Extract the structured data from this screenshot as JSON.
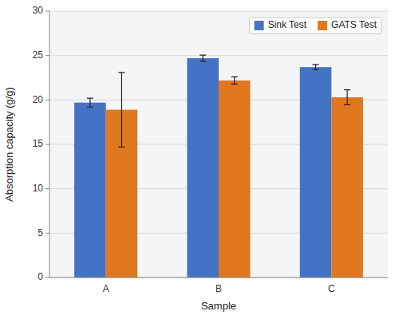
{
  "chart_data": {
    "type": "bar",
    "categories": [
      "A",
      "B",
      "C"
    ],
    "series": [
      {
        "name": "Sink Test",
        "color": "#4472C4",
        "values": [
          19.7,
          24.7,
          23.7
        ],
        "errors": [
          0.5,
          0.35,
          0.3
        ]
      },
      {
        "name": "GATS Test",
        "color": "#E07820",
        "values": [
          18.9,
          22.2,
          20.3
        ],
        "errors": [
          4.2,
          0.4,
          0.85
        ]
      }
    ],
    "xlabel": "Sample",
    "ylabel": "Absorption capacity (g/g)",
    "ylim": [
      0,
      30
    ],
    "yticks": [
      0,
      5,
      10,
      15,
      20,
      25,
      30
    ],
    "grid": true,
    "legend": "upper right"
  }
}
